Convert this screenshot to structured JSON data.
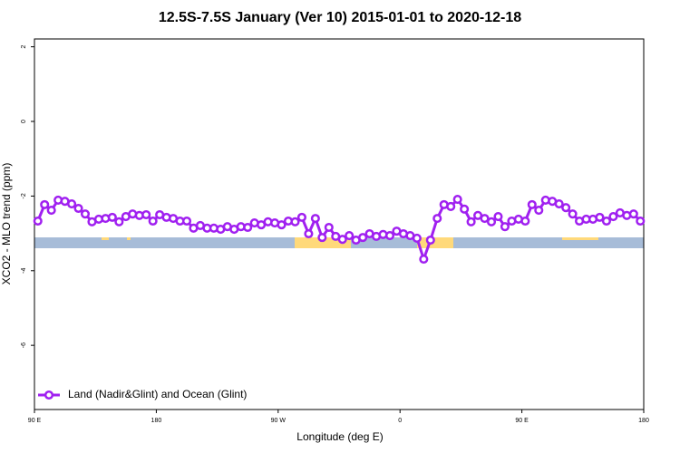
{
  "chart_data": {
    "type": "line",
    "title": "12.5S-7.5S January (Ver 10)   2015-01-01 to 2020-12-18",
    "x_label": "Longitude (deg E)",
    "y_label": "XCO2 - MLO trend (ppm)",
    "xlim": [
      90,
      540
    ],
    "ylim": [
      -7.72,
      2.21
    ],
    "xticks": [
      {
        "value": 90,
        "label": "90 E"
      },
      180,
      {
        "value": 270,
        "label": "90 W"
      },
      {
        "value": 360,
        "label": "0"
      },
      {
        "value": 450,
        "label": "90 E"
      },
      {
        "value": 540,
        "label": "180"
      }
    ],
    "yticks": [
      2,
      0,
      -2,
      -4,
      -6
    ],
    "legend": "bottom-left",
    "x": [
      92.5,
      97.5,
      102.5,
      107.5,
      112.5,
      117.5,
      122.5,
      127.5,
      132.5,
      137.5,
      142.5,
      147.5,
      152.5,
      157.5,
      162.5,
      167.5,
      172.5,
      177.5,
      182.5,
      187.5,
      192.5,
      197.5,
      202.5,
      207.5,
      212.5,
      217.5,
      222.5,
      227.5,
      232.5,
      237.5,
      242.5,
      247.5,
      252.5,
      257.5,
      262.5,
      267.5,
      272.5,
      277.5,
      282.5,
      287.5,
      292.5,
      297.5,
      302.5,
      307.5,
      312.5,
      317.5,
      322.5,
      327.5,
      332.5,
      337.5,
      342.5,
      347.5,
      352.5,
      357.5,
      362.5,
      367.5,
      372.5,
      377.5,
      382.5,
      387.5,
      392.5,
      397.5,
      402.5,
      407.5,
      412.5,
      417.5,
      422.5,
      427.5,
      432.5,
      437.5,
      442.5,
      447.5,
      452.5,
      457.5,
      462.5,
      467.5,
      472.5,
      477.5,
      482.5,
      487.5,
      492.5,
      497.5,
      502.5,
      507.5,
      512.5,
      517.5,
      522.5,
      527.5,
      532.5,
      537.5
    ],
    "series": [
      {
        "name": "Land (Nadir&Glint) and Ocean (Glint)",
        "color": "#a020f0",
        "values": [
          -2.67,
          -2.23,
          -2.38,
          -2.11,
          -2.14,
          -2.21,
          -2.33,
          -2.48,
          -2.69,
          -2.62,
          -2.6,
          -2.57,
          -2.69,
          -2.55,
          -2.48,
          -2.52,
          -2.5,
          -2.67,
          -2.5,
          -2.57,
          -2.6,
          -2.67,
          -2.67,
          -2.86,
          -2.79,
          -2.86,
          -2.86,
          -2.89,
          -2.82,
          -2.89,
          -2.82,
          -2.84,
          -2.72,
          -2.77,
          -2.69,
          -2.72,
          -2.77,
          -2.67,
          -2.69,
          -2.57,
          -3.01,
          -2.6,
          -3.11,
          -2.84,
          -3.08,
          -3.16,
          -3.06,
          -3.18,
          -3.11,
          -3.01,
          -3.08,
          -3.03,
          -3.06,
          -2.94,
          -3.01,
          -3.06,
          -3.13,
          -3.69,
          -3.18,
          -2.6,
          -2.23,
          -2.28,
          -2.09,
          -2.35,
          -2.69,
          -2.52,
          -2.6,
          -2.69,
          -2.55,
          -2.82,
          -2.67,
          -2.62,
          -2.67,
          -2.23,
          -2.38,
          -2.11,
          -2.14,
          -2.21,
          -2.31,
          -2.48,
          -2.67,
          -2.62,
          -2.62,
          -2.57,
          -2.67,
          -2.55,
          -2.45,
          -2.52,
          -2.48,
          -2.67
        ]
      }
    ]
  }
}
